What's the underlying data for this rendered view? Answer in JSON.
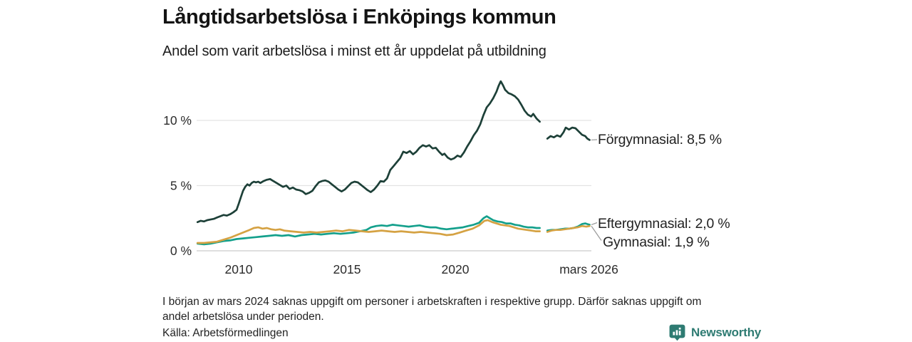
{
  "header": {
    "title": "Långtidsarbetslösa i Enköpings kommun",
    "subtitle": "Andel som varit arbetslösa i minst ett år uppdelat på utbildning"
  },
  "chart_data": {
    "type": "line",
    "title": "Långtidsarbetslösa i Enköpings kommun",
    "subtitle": "Andel som varit arbetslösa i minst ett år uppdelat på utbildning",
    "unit": "%",
    "grid": "horizontal",
    "legend_position": "end-of-line-labels",
    "xlim": [
      2008.0,
      2026.3
    ],
    "ylim": [
      0,
      13.5
    ],
    "x_ticks": [
      {
        "x": 2010,
        "label": "2010"
      },
      {
        "x": 2015,
        "label": "2015"
      },
      {
        "x": 2020,
        "label": "2020"
      },
      {
        "x": 2026.17,
        "label": "mars 2026"
      }
    ],
    "y_ticks": [
      {
        "v": 0,
        "label": "0 %"
      },
      {
        "v": 5,
        "label": "5 %"
      },
      {
        "v": 10,
        "label": "10 %"
      }
    ],
    "colors": {
      "grid": "#e3e3e3",
      "zero_line": "#cccccc",
      "leader": "#999999",
      "tick_text": "#2b2b2b"
    },
    "series": [
      {
        "name": "Förgymnasial",
        "end_label": "Förgymnasial: 8,5 %",
        "end_value": "8,5 %",
        "color": "#1d4038",
        "points": [
          [
            2008.1,
            2.2
          ],
          [
            2008.25,
            2.3
          ],
          [
            2008.4,
            2.25
          ],
          [
            2008.55,
            2.35
          ],
          [
            2008.7,
            2.4
          ],
          [
            2008.85,
            2.45
          ],
          [
            2009.0,
            2.55
          ],
          [
            2009.15,
            2.65
          ],
          [
            2009.3,
            2.75
          ],
          [
            2009.45,
            2.7
          ],
          [
            2009.6,
            2.8
          ],
          [
            2009.75,
            2.95
          ],
          [
            2009.9,
            3.15
          ],
          [
            2010.0,
            3.6
          ],
          [
            2010.1,
            4.1
          ],
          [
            2010.2,
            4.6
          ],
          [
            2010.3,
            4.9
          ],
          [
            2010.4,
            5.1
          ],
          [
            2010.5,
            5.0
          ],
          [
            2010.6,
            5.2
          ],
          [
            2010.7,
            5.3
          ],
          [
            2010.8,
            5.25
          ],
          [
            2010.9,
            5.3
          ],
          [
            2011.0,
            5.2
          ],
          [
            2011.15,
            5.35
          ],
          [
            2011.3,
            5.45
          ],
          [
            2011.45,
            5.5
          ],
          [
            2011.6,
            5.35
          ],
          [
            2011.75,
            5.2
          ],
          [
            2011.9,
            5.05
          ],
          [
            2012.05,
            4.9
          ],
          [
            2012.2,
            5.0
          ],
          [
            2012.35,
            4.75
          ],
          [
            2012.5,
            4.85
          ],
          [
            2012.65,
            4.7
          ],
          [
            2012.8,
            4.65
          ],
          [
            2012.95,
            4.55
          ],
          [
            2013.1,
            4.35
          ],
          [
            2013.25,
            4.45
          ],
          [
            2013.4,
            4.6
          ],
          [
            2013.55,
            4.95
          ],
          [
            2013.7,
            5.25
          ],
          [
            2013.85,
            5.35
          ],
          [
            2014.0,
            5.4
          ],
          [
            2014.15,
            5.3
          ],
          [
            2014.3,
            5.1
          ],
          [
            2014.45,
            4.9
          ],
          [
            2014.6,
            4.7
          ],
          [
            2014.75,
            4.55
          ],
          [
            2014.9,
            4.7
          ],
          [
            2015.05,
            4.95
          ],
          [
            2015.2,
            5.2
          ],
          [
            2015.35,
            5.3
          ],
          [
            2015.5,
            5.25
          ],
          [
            2015.65,
            5.05
          ],
          [
            2015.8,
            4.85
          ],
          [
            2015.95,
            4.65
          ],
          [
            2016.1,
            4.5
          ],
          [
            2016.25,
            4.7
          ],
          [
            2016.4,
            5.0
          ],
          [
            2016.55,
            5.35
          ],
          [
            2016.7,
            5.3
          ],
          [
            2016.85,
            5.55
          ],
          [
            2017.0,
            6.2
          ],
          [
            2017.15,
            6.5
          ],
          [
            2017.3,
            6.8
          ],
          [
            2017.45,
            7.1
          ],
          [
            2017.6,
            7.6
          ],
          [
            2017.75,
            7.5
          ],
          [
            2017.9,
            7.65
          ],
          [
            2018.05,
            7.4
          ],
          [
            2018.2,
            7.6
          ],
          [
            2018.35,
            7.9
          ],
          [
            2018.5,
            8.1
          ],
          [
            2018.65,
            8.0
          ],
          [
            2018.8,
            8.1
          ],
          [
            2018.95,
            7.85
          ],
          [
            2019.1,
            7.9
          ],
          [
            2019.25,
            7.6
          ],
          [
            2019.4,
            7.35
          ],
          [
            2019.5,
            7.45
          ],
          [
            2019.65,
            7.15
          ],
          [
            2019.8,
            7.0
          ],
          [
            2019.95,
            7.1
          ],
          [
            2020.1,
            7.3
          ],
          [
            2020.25,
            7.2
          ],
          [
            2020.4,
            7.55
          ],
          [
            2020.55,
            8.0
          ],
          [
            2020.7,
            8.4
          ],
          [
            2020.85,
            8.85
          ],
          [
            2021.0,
            9.2
          ],
          [
            2021.15,
            9.7
          ],
          [
            2021.3,
            10.4
          ],
          [
            2021.45,
            11.0
          ],
          [
            2021.6,
            11.3
          ],
          [
            2021.75,
            11.7
          ],
          [
            2021.9,
            12.2
          ],
          [
            2022.0,
            12.65
          ],
          [
            2022.1,
            13.0
          ],
          [
            2022.2,
            12.7
          ],
          [
            2022.3,
            12.35
          ],
          [
            2022.45,
            12.1
          ],
          [
            2022.6,
            12.0
          ],
          [
            2022.75,
            11.85
          ],
          [
            2022.9,
            11.6
          ],
          [
            2023.05,
            11.2
          ],
          [
            2023.2,
            10.75
          ],
          [
            2023.35,
            10.45
          ],
          [
            2023.5,
            10.3
          ],
          [
            2023.6,
            10.5
          ],
          [
            2023.75,
            10.15
          ],
          [
            2023.9,
            9.9
          ],
          null,
          [
            2024.25,
            8.6
          ],
          [
            2024.4,
            8.8
          ],
          [
            2024.55,
            8.7
          ],
          [
            2024.7,
            8.85
          ],
          [
            2024.85,
            8.75
          ],
          [
            2025.0,
            9.1
          ],
          [
            2025.1,
            9.45
          ],
          [
            2025.25,
            9.3
          ],
          [
            2025.4,
            9.45
          ],
          [
            2025.55,
            9.4
          ],
          [
            2025.7,
            9.15
          ],
          [
            2025.85,
            8.9
          ],
          [
            2026.0,
            8.8
          ],
          [
            2026.1,
            8.6
          ],
          [
            2026.2,
            8.5
          ]
        ]
      },
      {
        "name": "Eftergymnasial",
        "end_label": "Eftergymnasial: 2,0 %",
        "end_value": "2,0 %",
        "color": "#14a08c",
        "points": [
          [
            2008.1,
            0.55
          ],
          [
            2008.4,
            0.5
          ],
          [
            2008.7,
            0.55
          ],
          [
            2009.0,
            0.65
          ],
          [
            2009.3,
            0.75
          ],
          [
            2009.6,
            0.8
          ],
          [
            2009.9,
            0.9
          ],
          [
            2010.2,
            0.95
          ],
          [
            2010.5,
            1.0
          ],
          [
            2010.8,
            1.05
          ],
          [
            2011.1,
            1.1
          ],
          [
            2011.4,
            1.15
          ],
          [
            2011.7,
            1.2
          ],
          [
            2012.0,
            1.15
          ],
          [
            2012.3,
            1.2
          ],
          [
            2012.6,
            1.1
          ],
          [
            2012.9,
            1.2
          ],
          [
            2013.2,
            1.25
          ],
          [
            2013.5,
            1.3
          ],
          [
            2013.8,
            1.25
          ],
          [
            2014.1,
            1.3
          ],
          [
            2014.4,
            1.35
          ],
          [
            2014.7,
            1.3
          ],
          [
            2015.0,
            1.35
          ],
          [
            2015.3,
            1.4
          ],
          [
            2015.6,
            1.5
          ],
          [
            2015.9,
            1.6
          ],
          [
            2016.1,
            1.8
          ],
          [
            2016.35,
            1.9
          ],
          [
            2016.6,
            1.95
          ],
          [
            2016.85,
            1.9
          ],
          [
            2017.1,
            2.0
          ],
          [
            2017.35,
            1.95
          ],
          [
            2017.6,
            1.9
          ],
          [
            2017.85,
            1.85
          ],
          [
            2018.1,
            1.9
          ],
          [
            2018.35,
            1.95
          ],
          [
            2018.6,
            1.85
          ],
          [
            2018.85,
            1.8
          ],
          [
            2019.1,
            1.8
          ],
          [
            2019.35,
            1.7
          ],
          [
            2019.6,
            1.65
          ],
          [
            2019.85,
            1.7
          ],
          [
            2020.1,
            1.75
          ],
          [
            2020.35,
            1.8
          ],
          [
            2020.6,
            1.9
          ],
          [
            2020.85,
            2.0
          ],
          [
            2021.1,
            2.15
          ],
          [
            2021.3,
            2.5
          ],
          [
            2021.45,
            2.65
          ],
          [
            2021.6,
            2.5
          ],
          [
            2021.75,
            2.35
          ],
          [
            2021.95,
            2.25
          ],
          [
            2022.15,
            2.2
          ],
          [
            2022.35,
            2.1
          ],
          [
            2022.55,
            2.1
          ],
          [
            2022.75,
            2.0
          ],
          [
            2022.95,
            1.95
          ],
          [
            2023.15,
            1.85
          ],
          [
            2023.35,
            1.8
          ],
          [
            2023.55,
            1.8
          ],
          [
            2023.75,
            1.75
          ],
          [
            2023.9,
            1.75
          ],
          null,
          [
            2024.25,
            1.55
          ],
          [
            2024.45,
            1.6
          ],
          [
            2024.65,
            1.6
          ],
          [
            2024.85,
            1.65
          ],
          [
            2025.05,
            1.7
          ],
          [
            2025.25,
            1.7
          ],
          [
            2025.45,
            1.75
          ],
          [
            2025.65,
            1.85
          ],
          [
            2025.85,
            2.05
          ],
          [
            2026.0,
            2.1
          ],
          [
            2026.1,
            2.05
          ],
          [
            2026.2,
            2.0
          ]
        ]
      },
      {
        "name": "Gymnasial",
        "end_label": "Gymnasial: 1,9 %",
        "end_value": "1,9 %",
        "color": "#d5a243",
        "points": [
          [
            2008.1,
            0.6
          ],
          [
            2008.4,
            0.6
          ],
          [
            2008.7,
            0.65
          ],
          [
            2009.0,
            0.7
          ],
          [
            2009.3,
            0.85
          ],
          [
            2009.6,
            1.0
          ],
          [
            2009.9,
            1.2
          ],
          [
            2010.2,
            1.4
          ],
          [
            2010.5,
            1.6
          ],
          [
            2010.7,
            1.75
          ],
          [
            2010.9,
            1.8
          ],
          [
            2011.1,
            1.7
          ],
          [
            2011.3,
            1.75
          ],
          [
            2011.5,
            1.65
          ],
          [
            2011.7,
            1.6
          ],
          [
            2011.9,
            1.65
          ],
          [
            2012.1,
            1.55
          ],
          [
            2012.4,
            1.5
          ],
          [
            2012.7,
            1.45
          ],
          [
            2013.0,
            1.4
          ],
          [
            2013.3,
            1.45
          ],
          [
            2013.6,
            1.4
          ],
          [
            2013.9,
            1.45
          ],
          [
            2014.2,
            1.5
          ],
          [
            2014.5,
            1.55
          ],
          [
            2014.8,
            1.5
          ],
          [
            2015.1,
            1.6
          ],
          [
            2015.4,
            1.55
          ],
          [
            2015.7,
            1.5
          ],
          [
            2016.0,
            1.45
          ],
          [
            2016.3,
            1.5
          ],
          [
            2016.6,
            1.55
          ],
          [
            2016.9,
            1.5
          ],
          [
            2017.2,
            1.45
          ],
          [
            2017.5,
            1.5
          ],
          [
            2017.8,
            1.45
          ],
          [
            2018.1,
            1.4
          ],
          [
            2018.4,
            1.45
          ],
          [
            2018.7,
            1.4
          ],
          [
            2019.0,
            1.35
          ],
          [
            2019.3,
            1.3
          ],
          [
            2019.6,
            1.2
          ],
          [
            2019.9,
            1.25
          ],
          [
            2020.2,
            1.4
          ],
          [
            2020.5,
            1.55
          ],
          [
            2020.8,
            1.7
          ],
          [
            2021.1,
            1.95
          ],
          [
            2021.35,
            2.3
          ],
          [
            2021.5,
            2.35
          ],
          [
            2021.7,
            2.2
          ],
          [
            2021.9,
            2.1
          ],
          [
            2022.1,
            2.0
          ],
          [
            2022.3,
            1.95
          ],
          [
            2022.5,
            1.9
          ],
          [
            2022.7,
            1.8
          ],
          [
            2022.9,
            1.7
          ],
          [
            2023.1,
            1.65
          ],
          [
            2023.3,
            1.6
          ],
          [
            2023.5,
            1.55
          ],
          [
            2023.7,
            1.5
          ],
          [
            2023.9,
            1.5
          ],
          null,
          [
            2024.25,
            1.45
          ],
          [
            2024.45,
            1.55
          ],
          [
            2024.65,
            1.6
          ],
          [
            2024.85,
            1.6
          ],
          [
            2025.05,
            1.65
          ],
          [
            2025.25,
            1.7
          ],
          [
            2025.45,
            1.75
          ],
          [
            2025.65,
            1.8
          ],
          [
            2025.85,
            1.9
          ],
          [
            2026.05,
            1.85
          ],
          [
            2026.2,
            1.9
          ]
        ]
      }
    ]
  },
  "footer": {
    "note_line1": "I början av mars 2024 saknas uppgift om personer i arbetskraften i respektive grupp. Därför saknas uppgift om",
    "note_line2": "andel arbetslösa under perioden.",
    "source": "Källa: Arbetsförmedlingen",
    "brand": "Newsworthy",
    "brand_color": "#2e7b72"
  }
}
